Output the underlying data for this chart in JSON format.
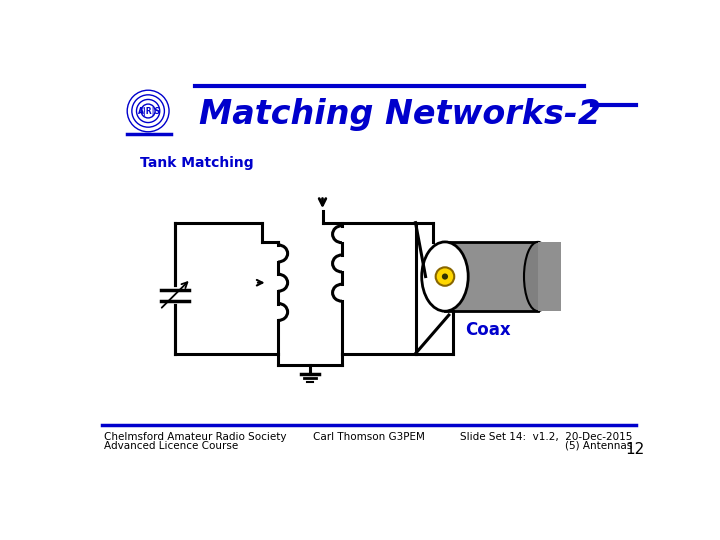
{
  "title": "Matching Networks-2",
  "subtitle": "Tank Matching",
  "title_color": "#0000CC",
  "bg_color": "#FFFFFF",
  "footer_left1": "Chelmsford Amateur Radio Society",
  "footer_left2": "Advanced Licence Course",
  "footer_center": "Carl Thomson G3PEM",
  "footer_right1": "Slide Set 14:  v1.2,  20-Dec-2015",
  "footer_right2": "(5) Antennas",
  "footer_num": "12",
  "coax_label": "Coax",
  "header_line_color": "#0000CC",
  "footer_line_color": "#0000CC"
}
